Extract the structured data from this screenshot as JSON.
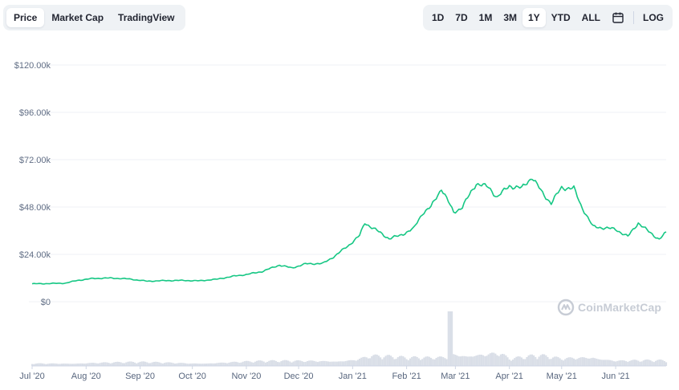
{
  "tabs": {
    "left": [
      {
        "label": "Price",
        "active": true
      },
      {
        "label": "Market Cap",
        "active": false
      },
      {
        "label": "TradingView",
        "active": false
      }
    ],
    "ranges": [
      {
        "label": "1D",
        "active": false
      },
      {
        "label": "7D",
        "active": false
      },
      {
        "label": "1M",
        "active": false
      },
      {
        "label": "3M",
        "active": false
      },
      {
        "label": "1Y",
        "active": true
      },
      {
        "label": "YTD",
        "active": false
      },
      {
        "label": "ALL",
        "active": false
      }
    ],
    "calendar_icon": "calendar-icon",
    "log_label": "LOG"
  },
  "watermark": {
    "text": "CoinMarketCap",
    "icon": "coinmarketcap-logo-icon"
  },
  "colors": {
    "line": "#16c784",
    "volume": "#d9dee7",
    "grid": "#eff2f5",
    "accent_bg": "#eff2f5"
  },
  "chart_data": {
    "type": "line",
    "title": "",
    "xlabel": "",
    "ylabel": "",
    "ylim": [
      0,
      120000
    ],
    "yticks": [
      0,
      24000,
      48000,
      72000,
      96000,
      120000
    ],
    "ytick_labels": [
      "$0",
      "$24.00k",
      "$48.00k",
      "$72.00k",
      "$96.00k",
      "$120.00k"
    ],
    "xlim": [
      "2020-07-01",
      "2021-06-30"
    ],
    "xticks": [
      "2020-07-01",
      "2020-08-01",
      "2020-09-01",
      "2020-10-01",
      "2020-11-01",
      "2020-12-01",
      "2021-01-01",
      "2021-02-01",
      "2021-03-01",
      "2021-04-01",
      "2021-05-01",
      "2021-06-01"
    ],
    "xtick_labels": [
      "Jul '20",
      "Aug '20",
      "Sep '20",
      "Oct '20",
      "Nov '20",
      "Dec '20",
      "Jan '21",
      "Feb '21",
      "Mar '21",
      "Apr '21",
      "May '21",
      "Jun '21"
    ],
    "grid": true,
    "series": [
      {
        "x": [
          "2020-07-01",
          "2020-07-10",
          "2020-07-20",
          "2020-07-27",
          "2020-08-05",
          "2020-08-15",
          "2020-08-25",
          "2020-09-05",
          "2020-09-15",
          "2020-09-25",
          "2020-10-05",
          "2020-10-15",
          "2020-10-25",
          "2020-11-01",
          "2020-11-10",
          "2020-11-20",
          "2020-11-27",
          "2020-12-05",
          "2020-12-15",
          "2020-12-22",
          "2020-12-30",
          "2021-01-05",
          "2021-01-08",
          "2021-01-15",
          "2021-01-22",
          "2021-01-28",
          "2021-02-05",
          "2021-02-10",
          "2021-02-15",
          "2021-02-21",
          "2021-02-28",
          "2021-03-05",
          "2021-03-13",
          "2021-03-20",
          "2021-03-25",
          "2021-04-01",
          "2021-04-08",
          "2021-04-14",
          "2021-04-20",
          "2021-04-25",
          "2021-05-01",
          "2021-05-08",
          "2021-05-12",
          "2021-05-19",
          "2021-05-25",
          "2021-06-01",
          "2021-06-08",
          "2021-06-14",
          "2021-06-20",
          "2021-06-26",
          "2021-06-30"
        ],
        "values": [
          9100,
          9200,
          9400,
          10800,
          11800,
          12000,
          11600,
          10400,
          10700,
          10800,
          10600,
          11400,
          13000,
          13800,
          15300,
          18600,
          17100,
          19200,
          19400,
          23300,
          28800,
          33500,
          40000,
          36000,
          32000,
          33500,
          37000,
          44800,
          48000,
          57500,
          45300,
          48000,
          60000,
          58000,
          53000,
          58800,
          57500,
          63200,
          55000,
          50000,
          57800,
          57500,
          49000,
          38000,
          37500,
          36700,
          33000,
          40000,
          35500,
          31700,
          35000
        ]
      }
    ],
    "volume": {
      "note_visible": false,
      "x": [
        "2020-07-01",
        "2020-08-01",
        "2020-09-01",
        "2020-10-01",
        "2020-11-01",
        "2020-12-01",
        "2021-01-01",
        "2021-01-12",
        "2021-02-01",
        "2021-02-15",
        "2021-02-26",
        "2021-03-01",
        "2021-04-01",
        "2021-04-18",
        "2021-05-01",
        "2021-05-19",
        "2021-06-01",
        "2021-06-30"
      ],
      "values": [
        14,
        20,
        22,
        18,
        26,
        30,
        40,
        62,
        46,
        50,
        60,
        260,
        42,
        60,
        44,
        64,
        36,
        30
      ]
    }
  }
}
